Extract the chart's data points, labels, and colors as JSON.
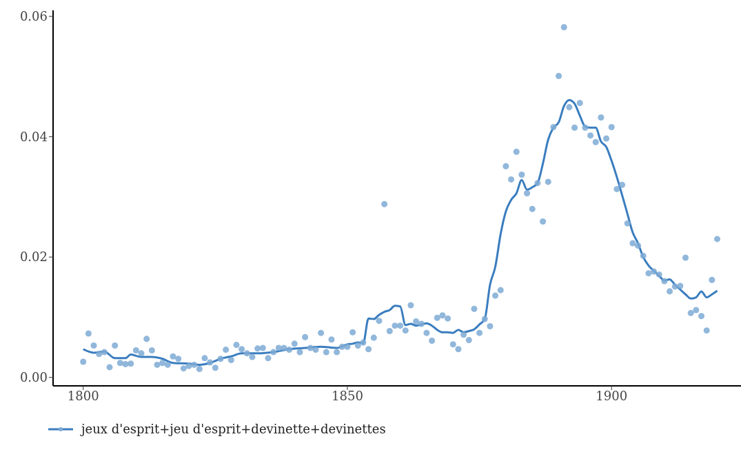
{
  "chart_data": {
    "type": "scatter",
    "xlim": [
      1794.3,
      1924.5
    ],
    "xticks": [
      1800,
      1850,
      1900
    ],
    "ylim": [
      -0.0014,
      0.061
    ],
    "yticks": [
      {
        "value": 0,
        "label": "0.00"
      },
      {
        "value": 0.02,
        "label": "0.02"
      },
      {
        "value": 0.04,
        "label": "0.04"
      },
      {
        "value": 0.06,
        "label": "0.06"
      }
    ],
    "grid": false,
    "legend": "bottom left",
    "series": [
      {
        "name": "jeux d'esprit+jeu d'esprit+devinette+devinettes",
        "marker": "circle",
        "color": "#7eaad5",
        "x": [
          1800,
          1801,
          1802,
          1803,
          1804,
          1805,
          1806,
          1807,
          1808,
          1809,
          1810,
          1811,
          1812,
          1813,
          1814,
          1815,
          1816,
          1817,
          1818,
          1819,
          1820,
          1821,
          1822,
          1823,
          1824,
          1825,
          1826,
          1827,
          1828,
          1829,
          1830,
          1831,
          1832,
          1833,
          1834,
          1835,
          1836,
          1837,
          1838,
          1839,
          1840,
          1841,
          1842,
          1843,
          1844,
          1845,
          1846,
          1847,
          1848,
          1849,
          1850,
          1851,
          1852,
          1853,
          1854,
          1855,
          1856,
          1857,
          1858,
          1859,
          1860,
          1861,
          1862,
          1863,
          1864,
          1865,
          1866,
          1867,
          1868,
          1869,
          1870,
          1871,
          1872,
          1873,
          1874,
          1875,
          1876,
          1877,
          1878,
          1879,
          1880,
          1881,
          1882,
          1883,
          1884,
          1885,
          1886,
          1887,
          1888,
          1889,
          1890,
          1891,
          1892,
          1893,
          1894,
          1895,
          1896,
          1897,
          1898,
          1899,
          1900,
          1901,
          1902,
          1903,
          1904,
          1905,
          1906,
          1907,
          1908,
          1909,
          1910,
          1911,
          1912,
          1913,
          1914,
          1915,
          1916,
          1917,
          1918,
          1919,
          1920
        ],
        "values": [
          0.0026,
          0.0073,
          0.0053,
          0.0039,
          0.0042,
          0.0017,
          0.0053,
          0.0024,
          0.0022,
          0.0023,
          0.0045,
          0.004,
          0.0064,
          0.0045,
          0.0021,
          0.0024,
          0.0021,
          0.0035,
          0.0031,
          0.0015,
          0.0019,
          0.0021,
          0.0014,
          0.0032,
          0.0025,
          0.0016,
          0.0031,
          0.0046,
          0.0029,
          0.0054,
          0.0047,
          0.004,
          0.0034,
          0.0048,
          0.0049,
          0.0032,
          0.0042,
          0.0049,
          0.0049,
          0.0046,
          0.0056,
          0.0042,
          0.0067,
          0.0049,
          0.0046,
          0.0074,
          0.0042,
          0.0063,
          0.0042,
          0.0051,
          0.0051,
          0.0075,
          0.0053,
          0.0058,
          0.0047,
          0.0066,
          0.0094,
          0.0288,
          0.0077,
          0.0086,
          0.0086,
          0.0078,
          0.012,
          0.0093,
          0.0089,
          0.0074,
          0.0061,
          0.0099,
          0.0103,
          0.0098,
          0.0055,
          0.0047,
          0.0071,
          0.0062,
          0.0114,
          0.0074,
          0.0097,
          0.0085,
          0.0136,
          0.0145,
          0.0351,
          0.0329,
          0.0375,
          0.0337,
          0.0306,
          0.028,
          0.0323,
          0.0259,
          0.0325,
          0.0416,
          0.0501,
          0.0582,
          0.0449,
          0.0415,
          0.0456,
          0.0415,
          0.0402,
          0.0391,
          0.0432,
          0.0397,
          0.0416,
          0.0313,
          0.032,
          0.0256,
          0.0223,
          0.0219,
          0.0202,
          0.0173,
          0.0176,
          0.0171,
          0.016,
          0.0143,
          0.0151,
          0.0152,
          0.0199,
          0.0107,
          0.0112,
          0.0102,
          0.0078,
          0.0162,
          0.023
        ]
      },
      {
        "type": "line",
        "marker": "none",
        "color": "#3a7dbf",
        "x": [
          1800,
          1802,
          1804,
          1806,
          1808,
          1809,
          1811,
          1813,
          1815,
          1817,
          1820,
          1822,
          1824,
          1826,
          1828,
          1830,
          1833,
          1836,
          1839,
          1842,
          1845,
          1848,
          1850,
          1851,
          1852,
          1853,
          1854,
          1855,
          1856,
          1857,
          1858,
          1859,
          1860,
          1861,
          1862,
          1863,
          1864,
          1865,
          1866,
          1867,
          1868,
          1869,
          1870,
          1871,
          1872,
          1873,
          1874,
          1875,
          1876,
          1877,
          1878,
          1879,
          1880,
          1881,
          1882,
          1883,
          1884,
          1885,
          1886,
          1887,
          1888,
          1889,
          1890,
          1891,
          1892,
          1893,
          1894,
          1895,
          1896,
          1897,
          1898,
          1899,
          1900,
          1901,
          1902,
          1903,
          1904,
          1905,
          1906,
          1907,
          1908,
          1909,
          1910,
          1911,
          1912,
          1913,
          1914,
          1915,
          1916,
          1917,
          1918,
          1919,
          1920
        ],
        "values": [
          0.0047,
          0.0041,
          0.0043,
          0.0032,
          0.0032,
          0.0038,
          0.0034,
          0.0034,
          0.0031,
          0.0024,
          0.0023,
          0.0021,
          0.0024,
          0.0031,
          0.0035,
          0.004,
          0.004,
          0.0042,
          0.0047,
          0.0049,
          0.0051,
          0.0049,
          0.0055,
          0.0056,
          0.0058,
          0.0057,
          0.0098,
          0.0097,
          0.0104,
          0.0109,
          0.0112,
          0.0119,
          0.0118,
          0.0087,
          0.0089,
          0.0086,
          0.0088,
          0.009,
          0.0086,
          0.0079,
          0.0075,
          0.0075,
          0.0074,
          0.0079,
          0.0075,
          0.0077,
          0.008,
          0.0088,
          0.0097,
          0.0154,
          0.0184,
          0.0238,
          0.0276,
          0.0295,
          0.0306,
          0.0328,
          0.0312,
          0.0316,
          0.0323,
          0.0355,
          0.0395,
          0.0415,
          0.0424,
          0.0451,
          0.0461,
          0.0455,
          0.0435,
          0.0417,
          0.0415,
          0.0415,
          0.0392,
          0.0383,
          0.036,
          0.0333,
          0.0303,
          0.0272,
          0.0241,
          0.0223,
          0.02,
          0.0186,
          0.0177,
          0.0169,
          0.0161,
          0.0163,
          0.0154,
          0.0146,
          0.0138,
          0.0131,
          0.0133,
          0.0143,
          0.0133,
          0.0138,
          0.0144
        ]
      }
    ]
  }
}
